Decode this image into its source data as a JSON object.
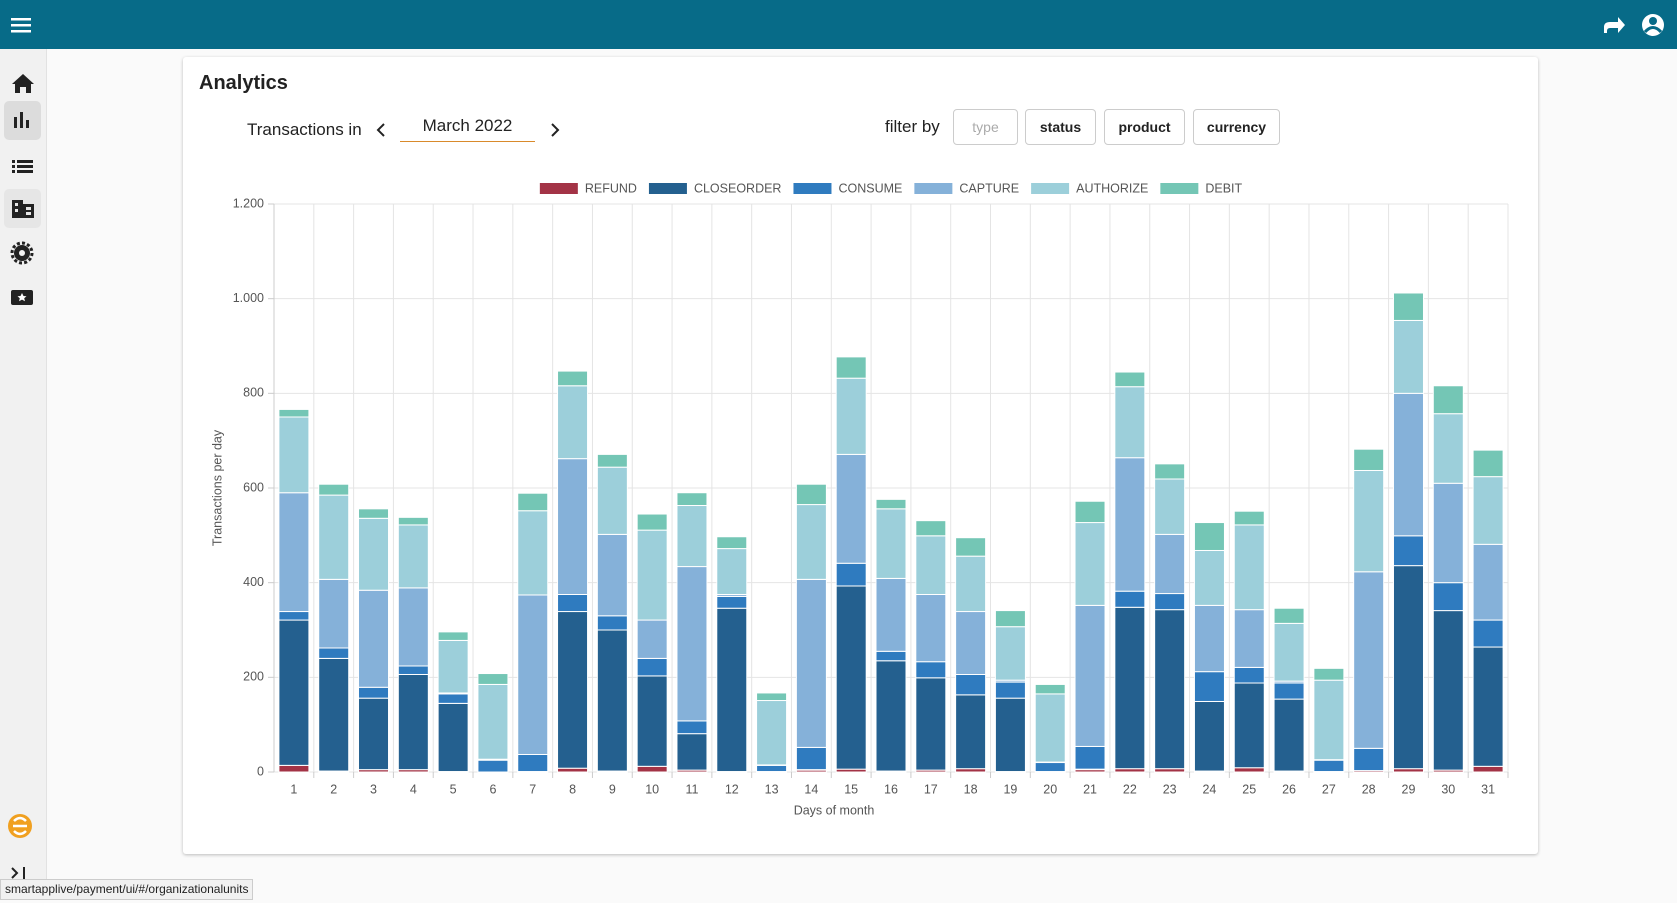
{
  "page": {
    "title": "Analytics",
    "transactions_label": "Transactions in",
    "month": "March 2022",
    "filter_label": "filter by",
    "filters": [
      "type",
      "status",
      "product",
      "currency"
    ]
  },
  "status_url": "smartapplive/payment/ui/#/organizationalunits",
  "chart_data": {
    "type": "stacked_bar",
    "x_label": "Days of month",
    "y_label": "Transactions per day",
    "categories": [
      "1",
      "2",
      "3",
      "4",
      "5",
      "6",
      "7",
      "8",
      "9",
      "10",
      "11",
      "12",
      "13",
      "14",
      "15",
      "16",
      "17",
      "18",
      "19",
      "20",
      "21",
      "22",
      "23",
      "24",
      "25",
      "26",
      "27",
      "28",
      "29",
      "30",
      "31"
    ],
    "ylim": [
      0,
      1200
    ],
    "yticks": [
      0,
      200,
      400,
      600,
      800,
      {
        "value": 1000,
        "label": "1.000"
      },
      {
        "value": 1200,
        "label": "1.200"
      }
    ],
    "grid": true,
    "legend": "top",
    "series": [
      {
        "name": "REFUND",
        "color": "#a33346",
        "values": [
          14,
          2,
          5,
          5,
          1,
          0,
          1,
          8,
          2,
          12,
          4,
          1,
          1,
          4,
          6,
          2,
          4,
          7,
          1,
          1,
          5,
          7,
          7,
          2,
          9,
          2,
          1,
          3,
          7,
          4,
          12
        ]
      },
      {
        "name": "CLOSEORDER",
        "color": "#24608f",
        "values": [
          307,
          238,
          151,
          201,
          144,
          0,
          0,
          331,
          298,
          191,
          77,
          345,
          0,
          1,
          387,
          233,
          195,
          156,
          155,
          0,
          1,
          341,
          336,
          147,
          179,
          152,
          0,
          0,
          429,
          337,
          252
        ]
      },
      {
        "name": "CONSUME",
        "color": "#2f7bbf",
        "values": [
          18,
          22,
          23,
          18,
          20,
          25,
          36,
          36,
          30,
          37,
          27,
          25,
          13,
          47,
          48,
          20,
          34,
          43,
          34,
          19,
          48,
          34,
          34,
          63,
          33,
          34,
          24,
          47,
          63,
          59,
          57
        ]
      },
      {
        "name": "CAPTURE",
        "color": "#85b1d9",
        "values": [
          251,
          145,
          205,
          165,
          2,
          2,
          337,
          287,
          172,
          81,
          326,
          4,
          1,
          355,
          230,
          154,
          142,
          133,
          4,
          1,
          298,
          282,
          125,
          140,
          122,
          4,
          1,
          373,
          301,
          210,
          160
        ]
      },
      {
        "name": "AUTHORIZE",
        "color": "#9ccfda",
        "values": [
          160,
          178,
          152,
          133,
          111,
          158,
          178,
          154,
          142,
          190,
          129,
          97,
          136,
          158,
          161,
          147,
          124,
          117,
          113,
          144,
          175,
          150,
          117,
          116,
          179,
          122,
          168,
          214,
          154,
          147,
          143
        ]
      },
      {
        "name": "DEBIT",
        "color": "#74c6b5",
        "values": [
          16,
          23,
          20,
          16,
          18,
          23,
          37,
          31,
          27,
          34,
          27,
          25,
          16,
          43,
          45,
          20,
          32,
          39,
          34,
          20,
          45,
          31,
          32,
          59,
          29,
          32,
          25,
          45,
          58,
          59,
          56
        ]
      }
    ]
  }
}
